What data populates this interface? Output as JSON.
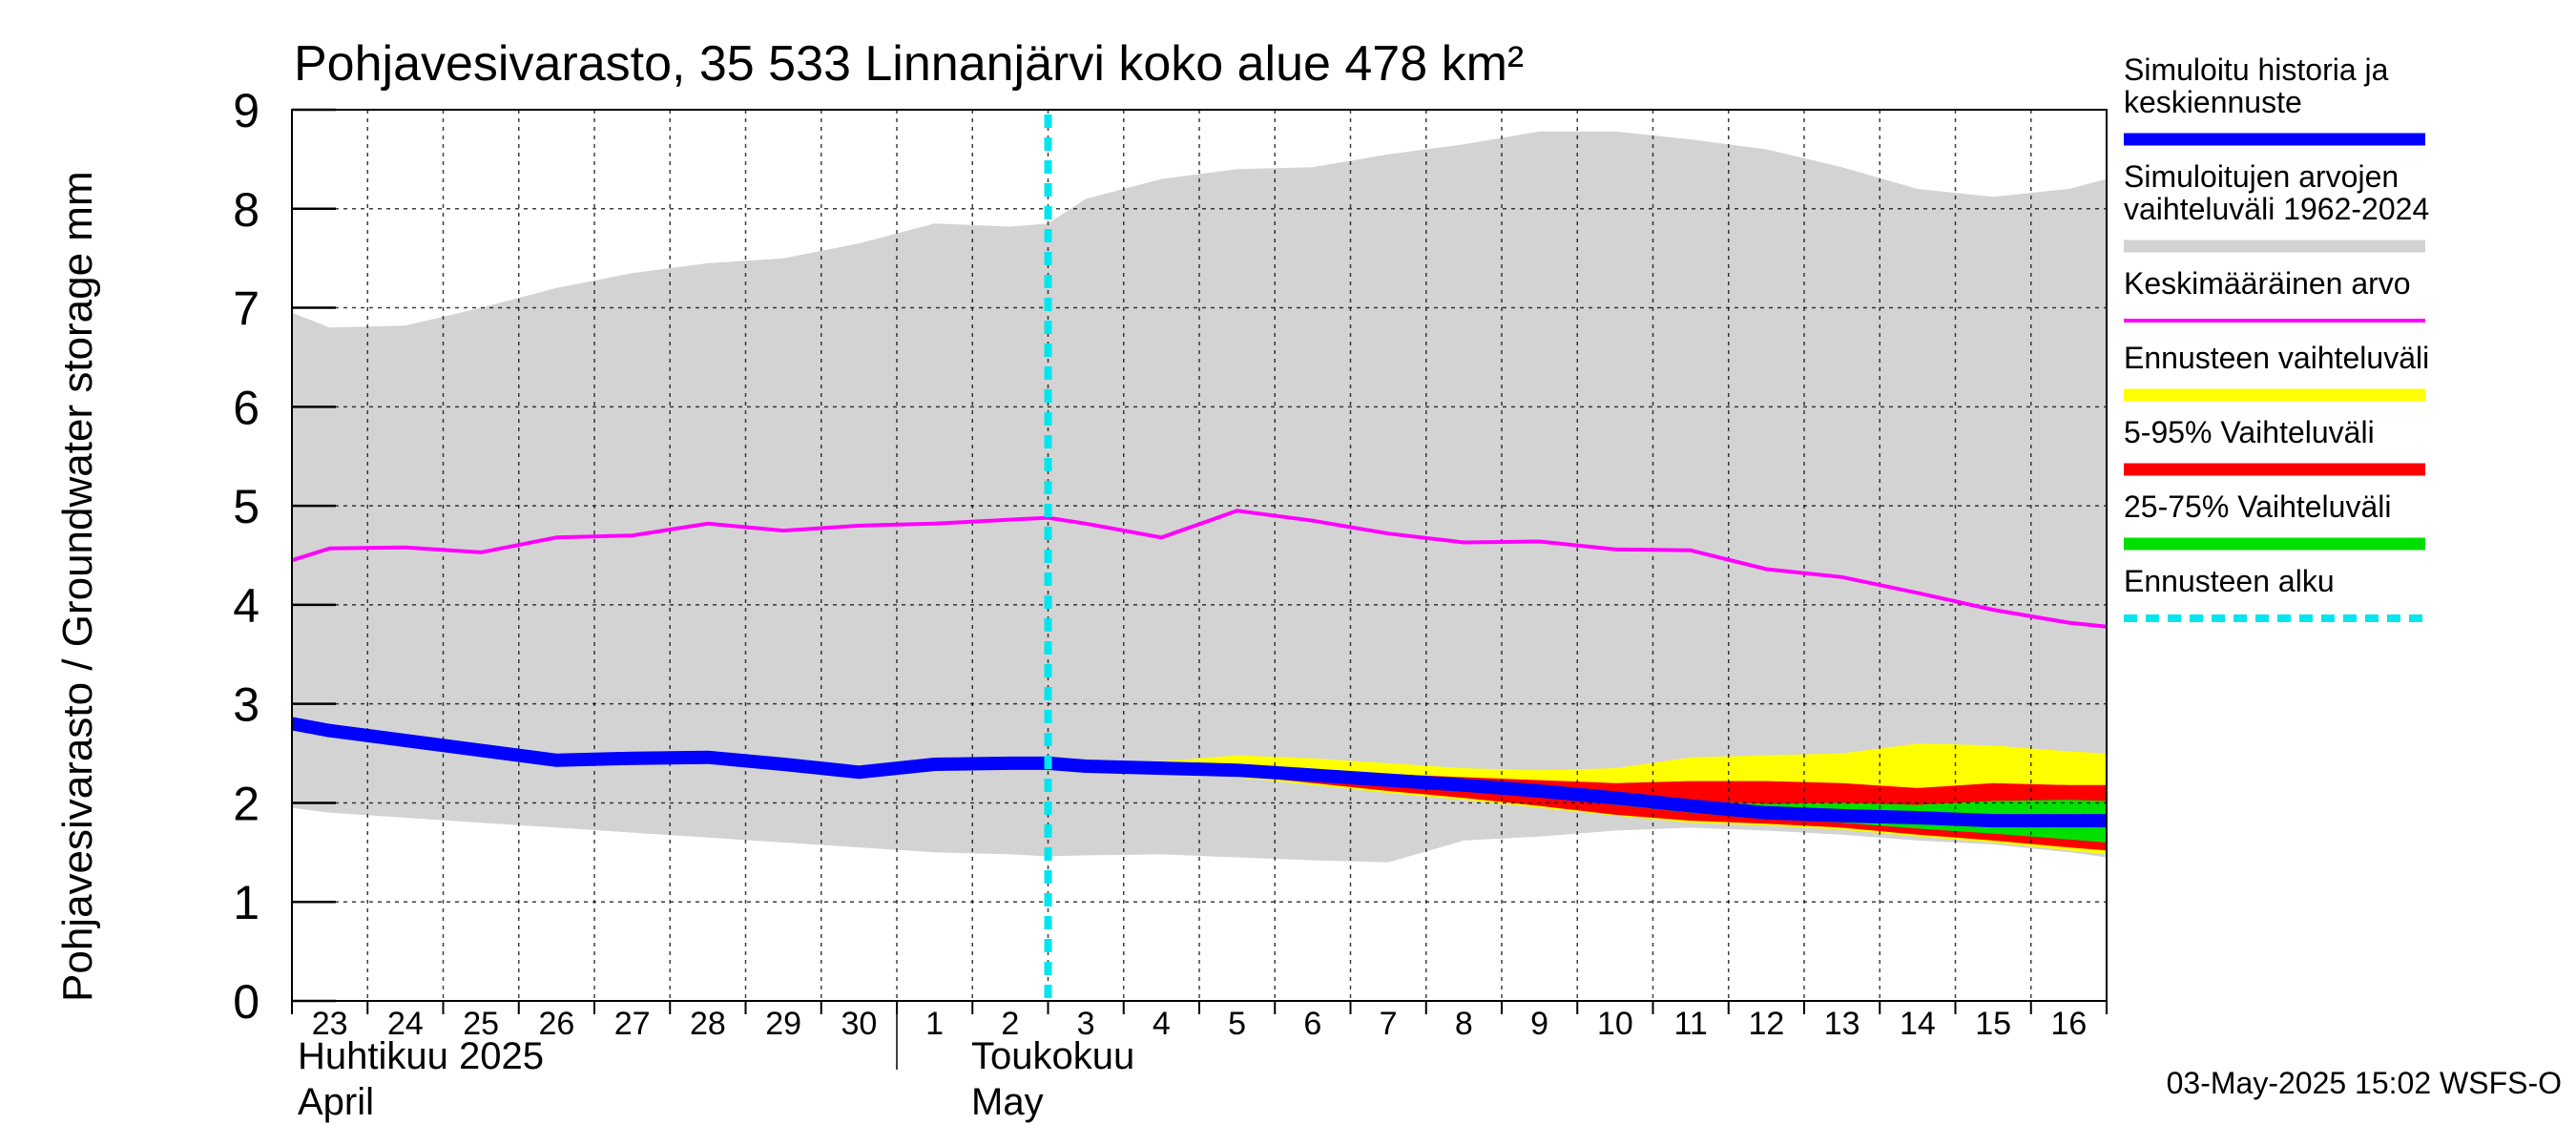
{
  "chart_data": {
    "type": "area",
    "title": "Pohjavesivarasto, 35 533 Linnanjärvi koko alue 478 km²",
    "ylabel": "Pohjavesivarasto / Groundwater storage   mm",
    "ylim": [
      0,
      9
    ],
    "yticks": [
      "0",
      "1",
      "2",
      "3",
      "4",
      "5",
      "6",
      "7",
      "8",
      "9"
    ],
    "xlim": [
      0,
      24
    ],
    "x_tick_labels": [
      "23",
      "24",
      "25",
      "26",
      "27",
      "28",
      "29",
      "30",
      "1",
      "2",
      "3",
      "4",
      "5",
      "6",
      "7",
      "8",
      "9",
      "10",
      "11",
      "12",
      "13",
      "14",
      "15",
      "16"
    ],
    "month_labels": {
      "april_fi": "Huhtikuu  2025",
      "april_en": "April",
      "may_fi": "Toukokuu",
      "may_en": "May"
    },
    "month_boundary_x": 8,
    "forecast_start_x": 10.0,
    "grid": true,
    "legend_position": "right",
    "footer": "03-May-2025 15:02 WSFS-O",
    "colors": {
      "history": "#0000ff",
      "range": "#d3d3d3",
      "mean": "#ff00ff",
      "forecast_range": "#ffff00",
      "p5_95": "#ff0000",
      "p25_75": "#00e000",
      "forecast_start": "#00e5ee"
    },
    "legend": [
      {
        "key": "history",
        "lines": [
          "Simuloitu historia ja",
          "keskiennuste"
        ],
        "style": "thick"
      },
      {
        "key": "range",
        "lines": [
          "Simuloitujen arvojen",
          "vaihteluväli 1962-2024"
        ],
        "style": "thick"
      },
      {
        "key": "mean",
        "lines": [
          "Keskimääräinen arvo"
        ],
        "style": "thin"
      },
      {
        "key": "forecast_range",
        "lines": [
          "Ennusteen vaihteluväli"
        ],
        "style": "thick"
      },
      {
        "key": "p5_95",
        "lines": [
          "5-95% Vaihteluväli"
        ],
        "style": "thick"
      },
      {
        "key": "p25_75",
        "lines": [
          "25-75% Vaihteluväli"
        ],
        "style": "thick"
      },
      {
        "key": "forecast_start",
        "lines": [
          "Ennusteen alku"
        ],
        "style": "dashed"
      }
    ],
    "series": {
      "range_band": {
        "x": [
          0,
          0.5,
          1.5,
          2.5,
          3.5,
          4.5,
          5.5,
          6.5,
          7.5,
          8.5,
          9.5,
          10.0,
          10.5,
          11.5,
          12.5,
          13.5,
          14.5,
          15.5,
          16.5,
          17.5,
          18.5,
          19.5,
          20.5,
          21.5,
          22.5,
          23.5,
          24
        ],
        "upper": [
          6.95,
          6.8,
          6.82,
          7.0,
          7.2,
          7.35,
          7.45,
          7.5,
          7.65,
          7.85,
          7.82,
          7.85,
          8.1,
          8.3,
          8.4,
          8.42,
          8.55,
          8.65,
          8.78,
          8.78,
          8.7,
          8.6,
          8.42,
          8.2,
          8.12,
          8.2,
          8.3
        ],
        "lower": [
          1.95,
          1.9,
          1.85,
          1.8,
          1.75,
          1.7,
          1.65,
          1.6,
          1.55,
          1.5,
          1.48,
          1.46,
          1.47,
          1.48,
          1.45,
          1.42,
          1.4,
          1.62,
          1.66,
          1.72,
          1.75,
          1.72,
          1.68,
          1.62,
          1.58,
          1.5,
          1.45
        ]
      },
      "mean": {
        "x": [
          0,
          0.5,
          1.5,
          2.5,
          3.5,
          4.5,
          5.5,
          6.5,
          7.5,
          8.5,
          9.5,
          10.0,
          10.5,
          11.5,
          12.5,
          13.5,
          14.5,
          15.5,
          16.5,
          17.5,
          18.5,
          19.5,
          20.5,
          21.5,
          22.5,
          23.5,
          24
        ],
        "values": [
          4.45,
          4.57,
          4.58,
          4.53,
          4.68,
          4.7,
          4.82,
          4.75,
          4.8,
          4.82,
          4.86,
          4.88,
          4.82,
          4.68,
          4.95,
          4.85,
          4.72,
          4.63,
          4.64,
          4.56,
          4.55,
          4.36,
          4.28,
          4.12,
          3.95,
          3.82,
          3.78
        ]
      },
      "history": {
        "x": [
          0,
          0.5,
          1.5,
          2.5,
          3.5,
          4.5,
          5.5,
          6.5,
          7.5,
          8.5,
          9.5,
          10.0
        ],
        "values": [
          2.8,
          2.73,
          2.63,
          2.53,
          2.43,
          2.45,
          2.46,
          2.39,
          2.31,
          2.39,
          2.4,
          2.4
        ]
      },
      "forecast": {
        "x": [
          10.0,
          10.5,
          11.5,
          12.5,
          13.5,
          14.5,
          15.5,
          16.5,
          17.5,
          18.5,
          19.5,
          20.5,
          21.5,
          22.5,
          23.5,
          24
        ],
        "median": [
          2.4,
          2.37,
          2.35,
          2.33,
          2.28,
          2.23,
          2.18,
          2.12,
          2.05,
          1.97,
          1.9,
          1.87,
          1.85,
          1.82,
          1.82,
          1.82
        ],
        "fc_max": [
          2.4,
          2.4,
          2.42,
          2.48,
          2.45,
          2.4,
          2.35,
          2.33,
          2.35,
          2.46,
          2.48,
          2.5,
          2.6,
          2.58,
          2.52,
          2.5
        ],
        "fc_min": [
          2.4,
          2.36,
          2.32,
          2.26,
          2.18,
          2.1,
          2.03,
          1.95,
          1.87,
          1.8,
          1.77,
          1.73,
          1.66,
          1.6,
          1.52,
          1.48
        ],
        "p95": [
          2.4,
          2.39,
          2.37,
          2.36,
          2.33,
          2.29,
          2.26,
          2.23,
          2.2,
          2.22,
          2.22,
          2.2,
          2.15,
          2.2,
          2.18,
          2.18
        ],
        "p5": [
          2.4,
          2.36,
          2.33,
          2.28,
          2.2,
          2.12,
          2.05,
          1.97,
          1.88,
          1.82,
          1.79,
          1.75,
          1.68,
          1.62,
          1.55,
          1.52
        ],
        "p75": [
          2.4,
          2.38,
          2.36,
          2.34,
          2.3,
          2.25,
          2.2,
          2.15,
          2.09,
          2.02,
          1.99,
          2.0,
          1.98,
          2.02,
          2.03,
          2.02
        ],
        "p25": [
          2.4,
          2.37,
          2.34,
          2.31,
          2.25,
          2.19,
          2.13,
          2.06,
          1.98,
          1.9,
          1.84,
          1.8,
          1.74,
          1.69,
          1.63,
          1.6
        ]
      }
    }
  }
}
